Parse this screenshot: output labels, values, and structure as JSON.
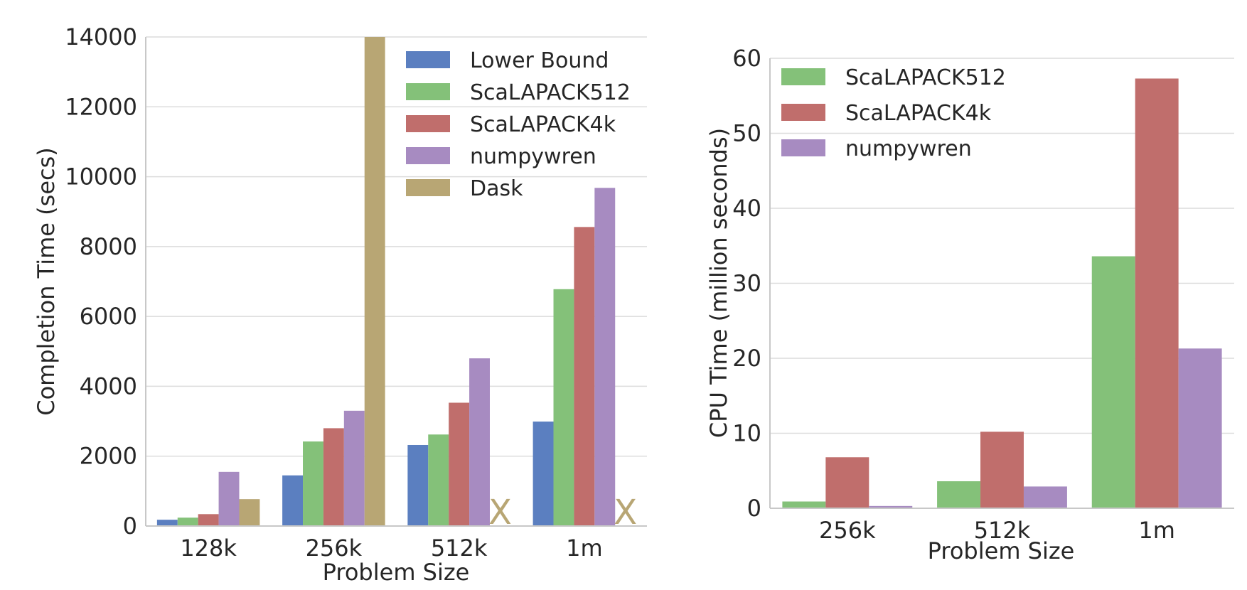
{
  "chart_data": [
    {
      "type": "bar",
      "xlabel": "Problem Size",
      "ylabel": "Completion Time (secs)",
      "ylim": [
        0,
        14000
      ],
      "yticks": [
        "0",
        "2000",
        "4000",
        "6000",
        "8000",
        "10000",
        "12000",
        "14000"
      ],
      "grid": true,
      "legend_position": "top-right",
      "categories": [
        "128k",
        "256k",
        "512k",
        "1m"
      ],
      "series": [
        {
          "name": "Lower Bound",
          "color": "#5b7fc0",
          "values": [
            180,
            1450,
            2320,
            2990
          ]
        },
        {
          "name": "ScaLAPACK512",
          "color": "#84c179",
          "values": [
            240,
            2420,
            2620,
            6780
          ]
        },
        {
          "name": "ScaLAPACK4k",
          "color": "#c06e6c",
          "values": [
            340,
            2800,
            3530,
            8560
          ]
        },
        {
          "name": "numpywren",
          "color": "#a78bc1",
          "values": [
            1550,
            3300,
            4800,
            9680
          ]
        },
        {
          "name": "Dask",
          "color": "#b8a674",
          "values": [
            770,
            14000,
            null,
            null
          ]
        }
      ],
      "missing_marker": {
        "text": "X",
        "series": "Dask",
        "categories": [
          "512k",
          "1m"
        ]
      }
    },
    {
      "type": "bar",
      "xlabel": "Problem Size",
      "ylabel": "CPU Time (million seconds)",
      "ylim": [
        0,
        60
      ],
      "yticks": [
        "0",
        "10",
        "20",
        "30",
        "40",
        "50",
        "60"
      ],
      "grid": true,
      "legend_position": "top-left",
      "categories": [
        "256k",
        "512k",
        "1m"
      ],
      "series": [
        {
          "name": "ScaLAPACK512",
          "color": "#84c179",
          "values": [
            0.9,
            3.6,
            33.6
          ]
        },
        {
          "name": "ScaLAPACK4k",
          "color": "#c06e6c",
          "values": [
            6.8,
            10.2,
            57.3
          ]
        },
        {
          "name": "numpywren",
          "color": "#a78bc1",
          "values": [
            0.3,
            2.9,
            21.3
          ]
        }
      ]
    }
  ]
}
